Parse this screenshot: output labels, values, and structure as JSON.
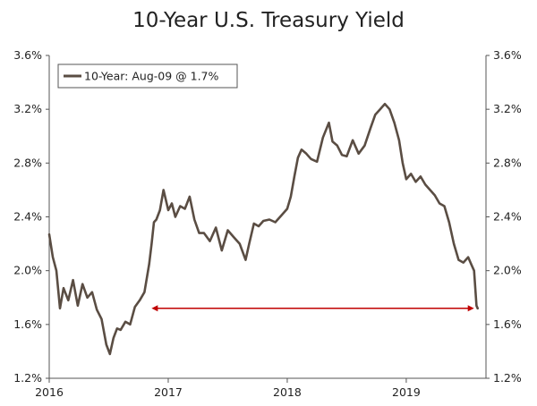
{
  "chart_data": {
    "type": "line",
    "title": "10-Year U.S. Treasury Yield",
    "xlabel": "",
    "ylabel": "",
    "x_ticks": [
      {
        "label": "2016",
        "value": 2016.0
      },
      {
        "label": "2017",
        "value": 2017.0
      },
      {
        "label": "2018",
        "value": 2018.0
      },
      {
        "label": "2019",
        "value": 2019.0
      }
    ],
    "xlim": [
      2016.0,
      2019.67
    ],
    "ylim": [
      1.2,
      3.6
    ],
    "y_ticks": [
      {
        "label": "1.2%",
        "value": 1.2
      },
      {
        "label": "1.6%",
        "value": 1.6
      },
      {
        "label": "2.0%",
        "value": 2.0
      },
      {
        "label": "2.4%",
        "value": 2.4
      },
      {
        "label": "2.8%",
        "value": 2.8
      },
      {
        "label": "3.2%",
        "value": 3.2
      },
      {
        "label": "3.6%",
        "value": 3.6
      }
    ],
    "grid": false,
    "legend_position": "top-left",
    "series": [
      {
        "name": "10-Year: Aug-09 @ 1.7%",
        "color": "#5a4d43",
        "x": [
          2016.0,
          2016.03,
          2016.06,
          2016.09,
          2016.12,
          2016.16,
          2016.2,
          2016.24,
          2016.28,
          2016.32,
          2016.36,
          2016.4,
          2016.44,
          2016.48,
          2016.51,
          2016.54,
          2016.57,
          2016.6,
          2016.64,
          2016.68,
          2016.72,
          2016.76,
          2016.8,
          2016.84,
          2016.86,
          2016.88,
          2016.9,
          2016.93,
          2016.96,
          2017.0,
          2017.03,
          2017.06,
          2017.1,
          2017.14,
          2017.18,
          2017.22,
          2017.26,
          2017.3,
          2017.35,
          2017.4,
          2017.45,
          2017.5,
          2017.55,
          2017.6,
          2017.65,
          2017.68,
          2017.72,
          2017.76,
          2017.8,
          2017.85,
          2017.9,
          2017.95,
          2018.0,
          2018.03,
          2018.06,
          2018.09,
          2018.12,
          2018.16,
          2018.2,
          2018.25,
          2018.3,
          2018.35,
          2018.38,
          2018.42,
          2018.46,
          2018.5,
          2018.55,
          2018.6,
          2018.65,
          2018.7,
          2018.74,
          2018.78,
          2018.82,
          2018.86,
          2018.9,
          2018.94,
          2018.97,
          2019.0,
          2019.04,
          2019.08,
          2019.12,
          2019.16,
          2019.2,
          2019.24,
          2019.28,
          2019.32,
          2019.36,
          2019.4,
          2019.44,
          2019.48,
          2019.52,
          2019.55,
          2019.57,
          2019.59,
          2019.6
        ],
        "values": [
          2.27,
          2.1,
          2.0,
          1.72,
          1.87,
          1.78,
          1.93,
          1.74,
          1.9,
          1.8,
          1.84,
          1.71,
          1.64,
          1.45,
          1.38,
          1.5,
          1.57,
          1.56,
          1.62,
          1.6,
          1.73,
          1.78,
          1.84,
          2.05,
          2.2,
          2.36,
          2.38,
          2.45,
          2.6,
          2.45,
          2.5,
          2.4,
          2.48,
          2.46,
          2.55,
          2.38,
          2.28,
          2.28,
          2.22,
          2.32,
          2.15,
          2.3,
          2.25,
          2.2,
          2.08,
          2.2,
          2.35,
          2.33,
          2.37,
          2.38,
          2.36,
          2.41,
          2.46,
          2.55,
          2.7,
          2.84,
          2.9,
          2.87,
          2.83,
          2.81,
          2.99,
          3.1,
          2.96,
          2.93,
          2.86,
          2.85,
          2.97,
          2.87,
          2.93,
          3.06,
          3.16,
          3.2,
          3.24,
          3.2,
          3.1,
          2.97,
          2.8,
          2.68,
          2.72,
          2.66,
          2.7,
          2.64,
          2.6,
          2.56,
          2.5,
          2.48,
          2.36,
          2.2,
          2.08,
          2.06,
          2.1,
          2.04,
          2.0,
          1.74,
          1.72
        ]
      }
    ],
    "annotations": [
      {
        "type": "double-arrow",
        "color": "#c00000",
        "x_start": 2016.86,
        "x_end": 2019.57,
        "y": 1.72
      }
    ]
  }
}
